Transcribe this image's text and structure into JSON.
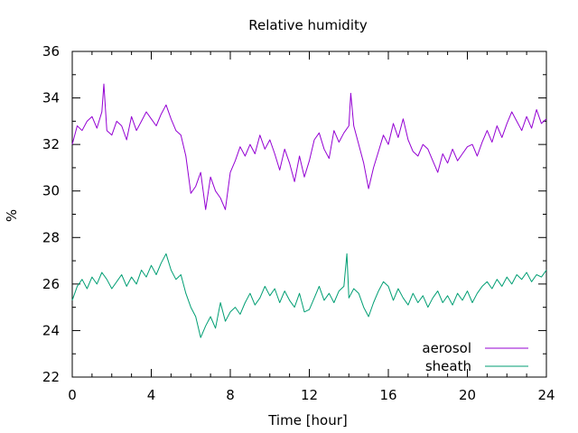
{
  "chart_data": {
    "type": "line",
    "title": "Relative humidity",
    "xlabel": "Time [hour]",
    "ylabel": "%",
    "xlim": [
      0,
      24
    ],
    "ylim": [
      22,
      36
    ],
    "xticks": [
      0,
      4,
      8,
      12,
      16,
      20,
      24
    ],
    "yticks": [
      22,
      24,
      26,
      28,
      30,
      32,
      34,
      36
    ],
    "grid": false,
    "legend_position": "bottom-right",
    "series": [
      {
        "name": "aerosol",
        "color": "#9400d3",
        "x": [
          0,
          0.25,
          0.5,
          0.75,
          1.0,
          1.25,
          1.5,
          1.6,
          1.75,
          2.0,
          2.25,
          2.5,
          2.75,
          3.0,
          3.25,
          3.5,
          3.75,
          4.0,
          4.25,
          4.5,
          4.75,
          5.0,
          5.25,
          5.5,
          5.75,
          6.0,
          6.25,
          6.5,
          6.75,
          7.0,
          7.25,
          7.5,
          7.75,
          8.0,
          8.25,
          8.5,
          8.75,
          9.0,
          9.25,
          9.5,
          9.75,
          10.0,
          10.25,
          10.5,
          10.75,
          11.0,
          11.25,
          11.5,
          11.75,
          12.0,
          12.25,
          12.5,
          12.75,
          13.0,
          13.25,
          13.5,
          13.75,
          14.0,
          14.1,
          14.25,
          14.5,
          14.75,
          15.0,
          15.25,
          15.5,
          15.75,
          16.0,
          16.25,
          16.5,
          16.75,
          17.0,
          17.25,
          17.5,
          17.75,
          18.0,
          18.25,
          18.5,
          18.75,
          19.0,
          19.25,
          19.5,
          19.75,
          20.0,
          20.25,
          20.5,
          20.75,
          21.0,
          21.25,
          21.5,
          21.75,
          22.0,
          22.25,
          22.5,
          22.75,
          23.0,
          23.25,
          23.5,
          23.75,
          24.0
        ],
        "values": [
          32.0,
          32.8,
          32.6,
          33.0,
          33.2,
          32.7,
          33.4,
          34.6,
          32.6,
          32.4,
          33.0,
          32.8,
          32.2,
          33.2,
          32.6,
          33.0,
          33.4,
          33.1,
          32.8,
          33.3,
          33.7,
          33.1,
          32.6,
          32.4,
          31.5,
          29.9,
          30.2,
          30.8,
          29.2,
          30.6,
          30.0,
          29.7,
          29.2,
          30.8,
          31.3,
          31.9,
          31.5,
          32.0,
          31.6,
          32.4,
          31.8,
          32.2,
          31.6,
          30.9,
          31.8,
          31.2,
          30.4,
          31.5,
          30.6,
          31.3,
          32.2,
          32.5,
          31.8,
          31.4,
          32.6,
          32.1,
          32.5,
          32.8,
          34.2,
          32.8,
          32.0,
          31.2,
          30.1,
          31.0,
          31.7,
          32.4,
          32.0,
          32.9,
          32.3,
          33.1,
          32.2,
          31.7,
          31.5,
          32.0,
          31.8,
          31.3,
          30.8,
          31.6,
          31.2,
          31.8,
          31.3,
          31.6,
          31.9,
          32.0,
          31.5,
          32.1,
          32.6,
          32.1,
          32.8,
          32.3,
          32.9,
          33.4,
          33.0,
          32.6,
          33.2,
          32.7,
          33.5,
          32.9,
          33.1
        ]
      },
      {
        "name": "sheath",
        "color": "#009e73",
        "x": [
          0,
          0.25,
          0.5,
          0.75,
          1.0,
          1.25,
          1.5,
          1.75,
          2.0,
          2.25,
          2.5,
          2.75,
          3.0,
          3.25,
          3.5,
          3.75,
          4.0,
          4.25,
          4.5,
          4.75,
          5.0,
          5.25,
          5.5,
          5.75,
          6.0,
          6.25,
          6.5,
          6.75,
          7.0,
          7.25,
          7.5,
          7.75,
          8.0,
          8.25,
          8.5,
          8.75,
          9.0,
          9.25,
          9.5,
          9.75,
          10.0,
          10.25,
          10.5,
          10.75,
          11.0,
          11.25,
          11.5,
          11.75,
          12.0,
          12.25,
          12.5,
          12.75,
          13.0,
          13.25,
          13.5,
          13.75,
          13.9,
          14.0,
          14.25,
          14.5,
          14.75,
          15.0,
          15.25,
          15.5,
          15.75,
          16.0,
          16.25,
          16.5,
          16.75,
          17.0,
          17.25,
          17.5,
          17.75,
          18.0,
          18.25,
          18.5,
          18.75,
          19.0,
          19.25,
          19.5,
          19.75,
          20.0,
          20.25,
          20.5,
          20.75,
          21.0,
          21.25,
          21.5,
          21.75,
          22.0,
          22.25,
          22.5,
          22.75,
          23.0,
          23.25,
          23.5,
          23.75,
          24.0
        ],
        "values": [
          25.3,
          25.9,
          26.2,
          25.8,
          26.3,
          26.0,
          26.5,
          26.2,
          25.8,
          26.1,
          26.4,
          25.9,
          26.3,
          26.0,
          26.6,
          26.3,
          26.8,
          26.4,
          26.9,
          27.3,
          26.6,
          26.2,
          26.4,
          25.6,
          25.0,
          24.6,
          23.7,
          24.2,
          24.6,
          24.1,
          25.2,
          24.4,
          24.8,
          25.0,
          24.7,
          25.2,
          25.6,
          25.1,
          25.4,
          25.9,
          25.5,
          25.8,
          25.2,
          25.7,
          25.3,
          25.0,
          25.6,
          24.8,
          24.9,
          25.4,
          25.9,
          25.3,
          25.6,
          25.2,
          25.7,
          25.9,
          27.3,
          25.4,
          25.8,
          25.6,
          25.0,
          24.6,
          25.2,
          25.7,
          26.1,
          25.9,
          25.3,
          25.8,
          25.4,
          25.1,
          25.6,
          25.2,
          25.5,
          25.0,
          25.4,
          25.7,
          25.2,
          25.5,
          25.1,
          25.6,
          25.3,
          25.7,
          25.2,
          25.6,
          25.9,
          26.1,
          25.8,
          26.2,
          25.9,
          26.3,
          26.0,
          26.4,
          26.2,
          26.5,
          26.1,
          26.4,
          26.3,
          26.6
        ]
      }
    ]
  }
}
